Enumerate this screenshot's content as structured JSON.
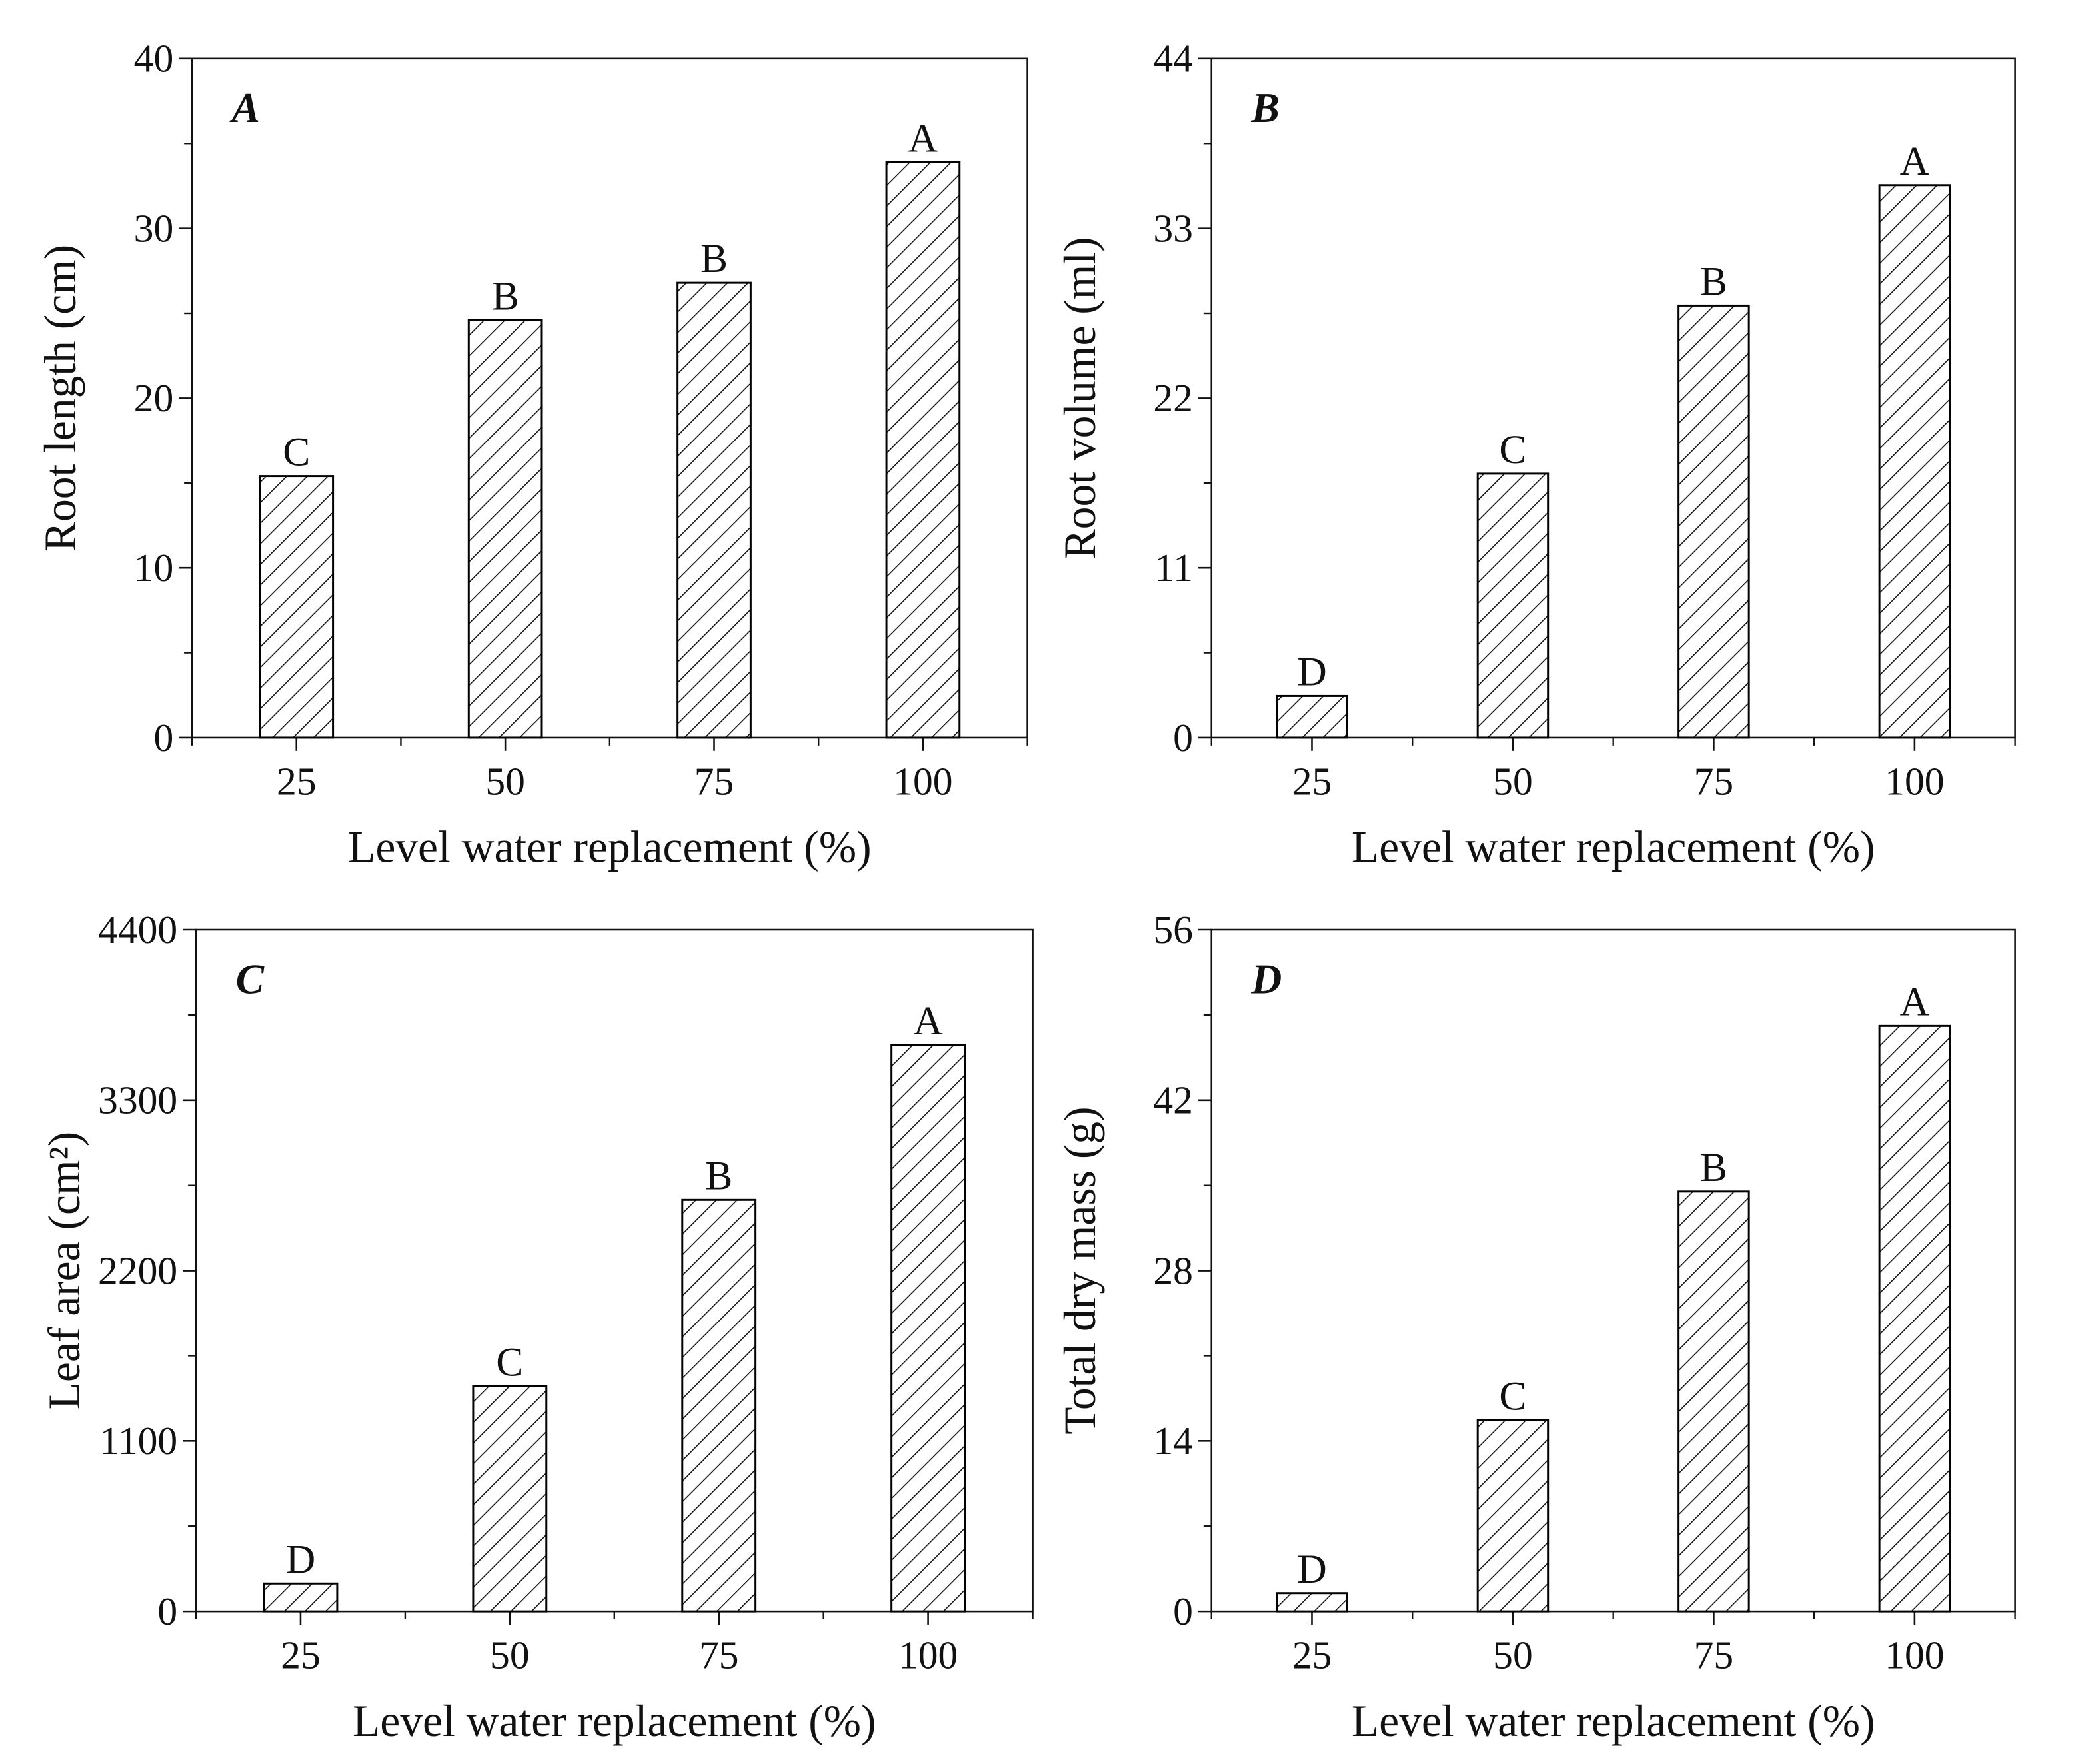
{
  "chart_data": [
    {
      "type": "bar",
      "panel_label": "A",
      "ylabel": "Root length (cm)",
      "xlabel": "Level water replacement (%)",
      "categories": [
        "25",
        "50",
        "75",
        "100"
      ],
      "values": [
        15.4,
        24.6,
        26.8,
        33.9
      ],
      "annotations": [
        "C",
        "B",
        "B",
        "A"
      ],
      "ylim": [
        0,
        40
      ],
      "yticks": [
        0,
        10,
        20,
        30,
        40
      ],
      "color": "#000000"
    },
    {
      "type": "bar",
      "panel_label": "B",
      "ylabel": "Root volume (ml)",
      "xlabel": "Level water replacement (%)",
      "categories": [
        "25",
        "50",
        "75",
        "100"
      ],
      "values": [
        2.7,
        17.1,
        28.0,
        35.8
      ],
      "annotations": [
        "D",
        "C",
        "B",
        "A"
      ],
      "ylim": [
        0,
        44
      ],
      "yticks": [
        0,
        11,
        22,
        33,
        44
      ],
      "color": "#000000"
    },
    {
      "type": "bar",
      "panel_label": "C",
      "ylabel": "Leaf area  (cm²)",
      "xlabel": "Level water replacement (%)",
      "categories": [
        "25",
        "50",
        "75",
        "100"
      ],
      "values": [
        180,
        1452,
        2657,
        3657
      ],
      "annotations": [
        "D",
        "C",
        "B",
        "A"
      ],
      "ylim": [
        0,
        4400
      ],
      "yticks": [
        0,
        1100,
        2200,
        3300,
        4400
      ],
      "color": "#000000"
    },
    {
      "type": "bar",
      "panel_label": "D",
      "ylabel": "Total dry mass (g)",
      "xlabel": "Level water replacement (%)",
      "categories": [
        "25",
        "50",
        "75",
        "100"
      ],
      "values": [
        1.5,
        15.7,
        34.5,
        48.1
      ],
      "annotations": [
        "D",
        "C",
        "B",
        "A"
      ],
      "ylim": [
        0,
        56
      ],
      "yticks": [
        0,
        14,
        28,
        42,
        56
      ],
      "color": "#000000"
    }
  ]
}
